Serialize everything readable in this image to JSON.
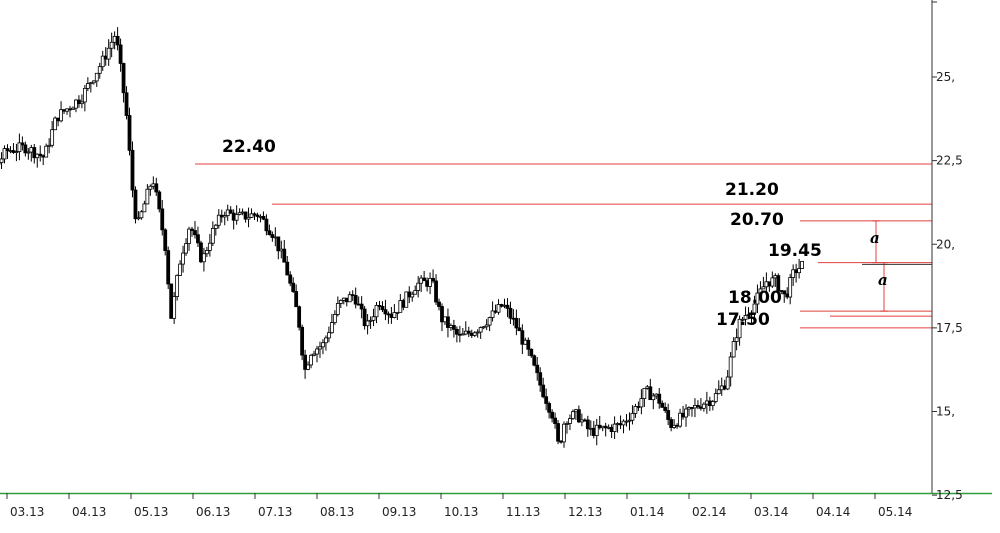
{
  "chart_data": {
    "type": "candlestick",
    "title": "",
    "xlabel": "",
    "ylabel": "",
    "ylim": [
      12.5,
      27.5
    ],
    "y_axis_position": "right",
    "grid": false,
    "y_ticks": [
      {
        "value": 12.5,
        "label": "12,5"
      },
      {
        "value": 15,
        "label": "15,"
      },
      {
        "value": 17.5,
        "label": "17,5"
      },
      {
        "value": 20,
        "label": "20,"
      },
      {
        "value": 22.5,
        "label": "22,5"
      },
      {
        "value": 25,
        "label": "25,"
      }
    ],
    "x_ticks": [
      "03.13",
      "04.13",
      "05.13",
      "06.13",
      "07.13",
      "08.13",
      "09.13",
      "10.13",
      "11.13",
      "12.13",
      "01.14",
      "02.14",
      "03.14",
      "04.14",
      "05.14"
    ],
    "price_path": [
      [
        0,
        22.2
      ],
      [
        0.35,
        22.0
      ],
      [
        0.55,
        21.6
      ],
      [
        0.8,
        22.3
      ],
      [
        1.0,
        22.8
      ],
      [
        1.3,
        22.9
      ],
      [
        1.6,
        22.6
      ],
      [
        1.8,
        23.8
      ],
      [
        2.2,
        24.4
      ],
      [
        2.55,
        25.5
      ],
      [
        2.75,
        26.3
      ],
      [
        2.85,
        25.0
      ],
      [
        2.95,
        23.5
      ],
      [
        3.0,
        22.0
      ],
      [
        3.1,
        20.5
      ],
      [
        3.35,
        22.0
      ],
      [
        3.55,
        20.0
      ],
      [
        3.65,
        17.8
      ],
      [
        3.8,
        19.6
      ],
      [
        3.95,
        20.6
      ],
      [
        4.15,
        19.5
      ],
      [
        4.3,
        20.3
      ],
      [
        4.5,
        21.0
      ],
      [
        4.7,
        20.8
      ],
      [
        5.05,
        20.9
      ],
      [
        5.3,
        20.3
      ],
      [
        5.5,
        19.3
      ],
      [
        5.7,
        17.8
      ],
      [
        5.8,
        16.2
      ],
      [
        5.9,
        16.8
      ],
      [
        6.1,
        17.0
      ],
      [
        6.35,
        18.2
      ],
      [
        6.6,
        18.5
      ],
      [
        6.8,
        17.5
      ],
      [
        7.0,
        18.3
      ],
      [
        7.2,
        17.9
      ],
      [
        7.4,
        18.3
      ],
      [
        7.6,
        18.8
      ],
      [
        7.85,
        18.9
      ],
      [
        8.0,
        17.8
      ],
      [
        8.3,
        17.2
      ],
      [
        8.6,
        17.5
      ],
      [
        8.9,
        18.0
      ],
      [
        9.0,
        18.2
      ],
      [
        9.2,
        17.6
      ],
      [
        9.4,
        16.8
      ],
      [
        9.6,
        15.8
      ],
      [
        9.8,
        14.9
      ],
      [
        9.9,
        13.9
      ],
      [
        10.0,
        14.8
      ],
      [
        10.2,
        14.9
      ],
      [
        10.4,
        14.4
      ],
      [
        10.7,
        14.5
      ],
      [
        10.9,
        14.6
      ],
      [
        11.1,
        15.0
      ],
      [
        11.3,
        15.6
      ],
      [
        11.5,
        15.4
      ],
      [
        11.7,
        14.6
      ],
      [
        11.95,
        14.9
      ],
      [
        12.15,
        15.2
      ],
      [
        12.4,
        15.4
      ],
      [
        12.6,
        15.9
      ],
      [
        12.7,
        16.8
      ],
      [
        12.8,
        17.6
      ],
      [
        12.95,
        18.0
      ],
      [
        13.05,
        18.2
      ],
      [
        13.25,
        18.9
      ],
      [
        13.4,
        18.9
      ],
      [
        13.55,
        18.4
      ],
      [
        13.7,
        19.2
      ],
      [
        13.85,
        19.4
      ]
    ],
    "levels": [
      {
        "value": 22.4,
        "label": "22.40"
      },
      {
        "value": 21.2,
        "label": "21.20"
      },
      {
        "value": 20.7,
        "label": "20.70"
      },
      {
        "value": 19.45,
        "label": "19.45"
      },
      {
        "value": 18.0,
        "label": "18.00"
      },
      {
        "value": 17.5,
        "label": "17.50"
      }
    ],
    "current_price": 19.4,
    "wave_labels": [
      "a",
      "a"
    ]
  }
}
